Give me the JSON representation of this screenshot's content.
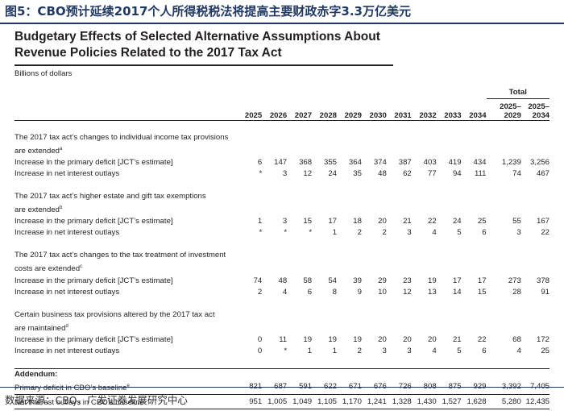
{
  "caption": "图5：CBO预计延续2017个人所得税税法将提高主要财政赤字3.3万亿美元",
  "title_line1": "Budgetary Effects of Selected Alternative Assumptions About",
  "title_line2": "Revenue Policies Related to the 2017 Tax Act",
  "unit": "Billions of dollars",
  "total_header": "Total",
  "columns": [
    "2025",
    "2026",
    "2027",
    "2028",
    "2029",
    "2030",
    "2031",
    "2032",
    "2033",
    "2034",
    "2025–\n2029",
    "2025–\n2034"
  ],
  "sections": [
    {
      "heading1": "The 2017 tax act’s changes to individual income tax provisions",
      "heading2": "are extended",
      "note": "a",
      "rows": [
        {
          "label": "Increase in the primary deficit [JCT’s estimate]",
          "values": [
            "6",
            "147",
            "368",
            "355",
            "364",
            "374",
            "387",
            "403",
            "419",
            "434",
            "1,239",
            "3,256"
          ]
        },
        {
          "label": "Increase in net interest outlays",
          "values": [
            "*",
            "3",
            "12",
            "24",
            "35",
            "48",
            "62",
            "77",
            "94",
            "111",
            "74",
            "467"
          ]
        }
      ]
    },
    {
      "heading1": "The 2017 tax act’s higher estate and gift tax exemptions",
      "heading2": "are extended",
      "note": "b",
      "rows": [
        {
          "label": "Increase in the primary deficit [JCT’s estimate]",
          "values": [
            "1",
            "3",
            "15",
            "17",
            "18",
            "20",
            "21",
            "22",
            "24",
            "25",
            "55",
            "167"
          ]
        },
        {
          "label": "Increase in net interest outlays",
          "values": [
            "*",
            "*",
            "*",
            "1",
            "2",
            "2",
            "3",
            "4",
            "5",
            "6",
            "3",
            "22"
          ]
        }
      ]
    },
    {
      "heading1": "The 2017 tax act’s changes to the tax treatment of investment",
      "heading2": "costs are extended",
      "note": "c",
      "rows": [
        {
          "label": "Increase in the primary deficit [JCT’s estimate]",
          "values": [
            "74",
            "48",
            "58",
            "54",
            "39",
            "29",
            "23",
            "19",
            "17",
            "17",
            "273",
            "378"
          ]
        },
        {
          "label": "Increase in net interest outlays",
          "values": [
            "2",
            "4",
            "6",
            "8",
            "9",
            "10",
            "12",
            "13",
            "14",
            "15",
            "28",
            "91"
          ]
        }
      ]
    },
    {
      "heading1": "Certain business tax provisions altered by the 2017 tax act",
      "heading2": "are maintained",
      "note": "d",
      "rows": [
        {
          "label": "Increase in the primary deficit [JCT’s estimate]",
          "values": [
            "0",
            "11",
            "19",
            "19",
            "19",
            "20",
            "20",
            "20",
            "21",
            "22",
            "68",
            "172"
          ]
        },
        {
          "label": "Increase in net interest outlays",
          "values": [
            "0",
            "*",
            "1",
            "1",
            "2",
            "3",
            "3",
            "4",
            "5",
            "6",
            "4",
            "25"
          ]
        }
      ]
    }
  ],
  "addendum": {
    "heading": "Addendum:",
    "rows": [
      {
        "label": "Primary deficit in CBO’s baseline",
        "note": "e",
        "values": [
          "821",
          "687",
          "591",
          "622",
          "671",
          "676",
          "726",
          "808",
          "875",
          "929",
          "3,392",
          "7,405"
        ]
      },
      {
        "label": "Net interest outlays in CBO’s baseline",
        "note": "",
        "values": [
          "951",
          "1,005",
          "1,049",
          "1,105",
          "1,170",
          "1,241",
          "1,328",
          "1,430",
          "1,527",
          "1,628",
          "5,280",
          "12,435"
        ]
      }
    ]
  },
  "source": "数据来源：CBO，广发证券发展研究中心"
}
